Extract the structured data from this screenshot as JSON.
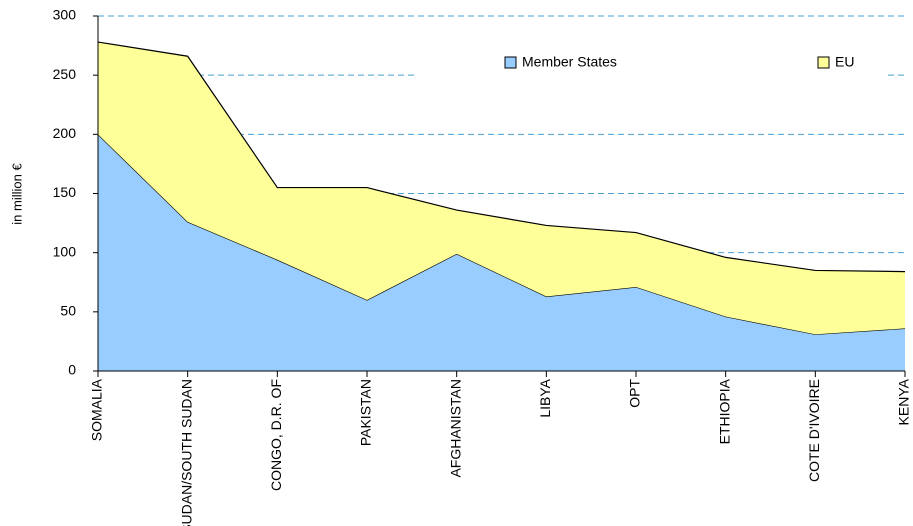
{
  "chart_data": {
    "type": "stacked_area",
    "y_label": "in million €",
    "categories": [
      "SOMALIA",
      "SUDAN/SOUTH SUDAN",
      "CONGO, D.R. OF",
      "PAKISTAN",
      "AFGHANISTAN",
      "LIBYA",
      "OPT",
      "ETHIOPIA",
      "COTE D'IVOIRE",
      "KENYA"
    ],
    "series": [
      {
        "name": "Member States",
        "color": "#99ccff",
        "values": [
          200,
          126,
          94,
          60,
          99,
          63,
          71,
          46,
          31,
          36
        ]
      },
      {
        "name": "EU",
        "color": "#ffff99",
        "values": [
          78,
          140,
          61,
          95,
          37,
          60,
          46,
          50,
          54,
          48
        ]
      }
    ],
    "ylim": [
      0,
      300
    ],
    "yticks": [
      0,
      50,
      100,
      150,
      200,
      250,
      300
    ],
    "grid": true,
    "legend": "top-right"
  }
}
